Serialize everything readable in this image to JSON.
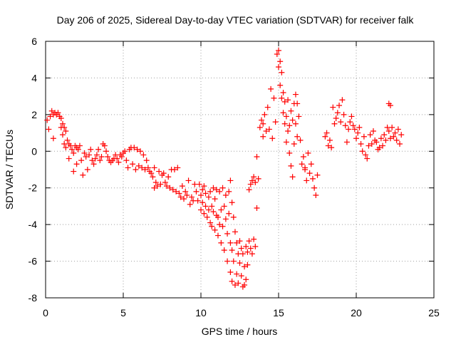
{
  "chart_data": {
    "type": "scatter",
    "title": "Day 206 of 2025, Sidereal Day-to-day VTEC variation (SDTVAR) for receiver falk",
    "xlabel": "GPS time / hours",
    "ylabel": "SDTVAR / TECUs",
    "xlim": [
      0,
      25
    ],
    "ylim": [
      -8,
      6
    ],
    "xticks": [
      0,
      5,
      10,
      15,
      20,
      25
    ],
    "yticks": [
      -8,
      -6,
      -4,
      -2,
      0,
      2,
      4,
      6
    ],
    "grid": true,
    "marker": "+",
    "marker_color": "#ff0000",
    "series": [
      {
        "name": "SDTVAR",
        "points": [
          [
            0.1,
            1.7
          ],
          [
            0.2,
            1.2
          ],
          [
            0.3,
            1.9
          ],
          [
            0.4,
            2.2
          ],
          [
            0.5,
            2.0
          ],
          [
            0.5,
            0.7
          ],
          [
            0.6,
            2.1
          ],
          [
            0.7,
            2.0
          ],
          [
            0.8,
            2.1
          ],
          [
            0.9,
            1.9
          ],
          [
            1.0,
            1.8
          ],
          [
            1.0,
            1.3
          ],
          [
            1.1,
            1.5
          ],
          [
            1.1,
            0.9
          ],
          [
            1.2,
            1.3
          ],
          [
            1.2,
            0.4
          ],
          [
            1.3,
            1.1
          ],
          [
            1.3,
            0.2
          ],
          [
            1.4,
            0.6
          ],
          [
            1.5,
            0.4
          ],
          [
            1.5,
            -0.4
          ],
          [
            1.6,
            0.3
          ],
          [
            1.7,
            0.1
          ],
          [
            1.8,
            -0.1
          ],
          [
            1.8,
            -1.1
          ],
          [
            1.9,
            0.3
          ],
          [
            2.0,
            0.2
          ],
          [
            2.0,
            -0.7
          ],
          [
            2.1,
            0.1
          ],
          [
            2.2,
            0.3
          ],
          [
            2.3,
            -0.5
          ],
          [
            2.4,
            -1.3
          ],
          [
            2.5,
            -0.1
          ],
          [
            2.6,
            -0.3
          ],
          [
            2.7,
            -1.0
          ],
          [
            2.8,
            -0.2
          ],
          [
            2.9,
            0.1
          ],
          [
            3.0,
            -0.5
          ],
          [
            3.1,
            -0.7
          ],
          [
            3.2,
            -0.4
          ],
          [
            3.3,
            -0.2
          ],
          [
            3.4,
            0.1
          ],
          [
            3.5,
            -0.5
          ],
          [
            3.6,
            -0.3
          ],
          [
            3.7,
            0.4
          ],
          [
            3.8,
            0.3
          ],
          [
            3.9,
            0.0
          ],
          [
            4.0,
            -0.3
          ],
          [
            4.1,
            -0.5
          ],
          [
            4.2,
            -0.6
          ],
          [
            4.3,
            -0.5
          ],
          [
            4.4,
            -0.4
          ],
          [
            4.5,
            -0.2
          ],
          [
            4.6,
            -0.4
          ],
          [
            4.7,
            -0.6
          ],
          [
            4.8,
            -0.2
          ],
          [
            4.9,
            -0.3
          ],
          [
            5.0,
            -0.1
          ],
          [
            5.1,
            0.0
          ],
          [
            5.2,
            -0.5
          ],
          [
            5.3,
            -0.9
          ],
          [
            5.4,
            0.1
          ],
          [
            5.5,
            0.2
          ],
          [
            5.6,
            -0.7
          ],
          [
            5.7,
            0.2
          ],
          [
            5.8,
            -1.0
          ],
          [
            5.9,
            0.1
          ],
          [
            6.0,
            -0.8
          ],
          [
            6.1,
            0.0
          ],
          [
            6.2,
            -0.9
          ],
          [
            6.3,
            -0.2
          ],
          [
            6.4,
            -1.0
          ],
          [
            6.5,
            -0.5
          ],
          [
            6.6,
            -0.9
          ],
          [
            6.7,
            -1.1
          ],
          [
            6.8,
            -1.2
          ],
          [
            6.9,
            -1.4
          ],
          [
            7.0,
            -2.0
          ],
          [
            7.0,
            -0.9
          ],
          [
            7.1,
            -1.7
          ],
          [
            7.2,
            -1.9
          ],
          [
            7.3,
            -1.1
          ],
          [
            7.4,
            -1.8
          ],
          [
            7.5,
            -1.3
          ],
          [
            7.6,
            -1.2
          ],
          [
            7.7,
            -1.7
          ],
          [
            7.8,
            -1.9
          ],
          [
            7.9,
            -1.4
          ],
          [
            8.0,
            -2.0
          ],
          [
            8.1,
            -1.0
          ],
          [
            8.2,
            -2.1
          ],
          [
            8.3,
            -1.0
          ],
          [
            8.4,
            -2.2
          ],
          [
            8.5,
            -0.9
          ],
          [
            8.6,
            -2.3
          ],
          [
            8.7,
            -2.5
          ],
          [
            8.8,
            -1.9
          ],
          [
            8.9,
            -2.6
          ],
          [
            9.0,
            -2.2
          ],
          [
            9.1,
            -2.4
          ],
          [
            9.2,
            -1.6
          ],
          [
            9.3,
            -2.9
          ],
          [
            9.4,
            -2.5
          ],
          [
            9.5,
            -2.7
          ],
          [
            9.6,
            -1.8
          ],
          [
            9.7,
            -2.2
          ],
          [
            9.8,
            -2.7
          ],
          [
            9.9,
            -1.8
          ],
          [
            10.0,
            -2.4
          ],
          [
            10.0,
            -3.2
          ],
          [
            10.1,
            -2.1
          ],
          [
            10.1,
            -2.8
          ],
          [
            10.2,
            -1.9
          ],
          [
            10.2,
            -3.4
          ],
          [
            10.3,
            -2.3
          ],
          [
            10.3,
            -3.0
          ],
          [
            10.4,
            -3.6
          ],
          [
            10.5,
            -2.5
          ],
          [
            10.5,
            -3.2
          ],
          [
            10.6,
            -3.9
          ],
          [
            10.6,
            -2.2
          ],
          [
            10.7,
            -3.0
          ],
          [
            10.7,
            -4.1
          ],
          [
            10.8,
            -2.0
          ],
          [
            10.8,
            -3.3
          ],
          [
            10.9,
            -2.6
          ],
          [
            10.9,
            -4.3
          ],
          [
            11.0,
            -2.1
          ],
          [
            11.0,
            -3.5
          ],
          [
            11.1,
            -3.6
          ],
          [
            11.1,
            -4.6
          ],
          [
            11.2,
            -2.2
          ],
          [
            11.2,
            -4.0
          ],
          [
            11.3,
            -3.2
          ],
          [
            11.3,
            -5.0
          ],
          [
            11.4,
            -2.0
          ],
          [
            11.4,
            -4.1
          ],
          [
            11.5,
            -3.0
          ],
          [
            11.5,
            -5.4
          ],
          [
            11.6,
            -2.4
          ],
          [
            11.6,
            -3.7
          ],
          [
            11.7,
            -4.5
          ],
          [
            11.7,
            -6.0
          ],
          [
            11.8,
            -2.2
          ],
          [
            11.8,
            -3.4
          ],
          [
            11.9,
            -5.0
          ],
          [
            11.9,
            -6.6
          ],
          [
            11.9,
            -1.6
          ],
          [
            12.0,
            -2.8
          ],
          [
            12.0,
            -5.4
          ],
          [
            12.0,
            -7.1
          ],
          [
            12.1,
            -3.6
          ],
          [
            12.1,
            -6.0
          ],
          [
            12.2,
            -4.4
          ],
          [
            12.2,
            -7.3
          ],
          [
            12.3,
            -5.0
          ],
          [
            12.3,
            -6.7
          ],
          [
            12.4,
            -5.6
          ],
          [
            12.4,
            -7.2
          ],
          [
            12.5,
            -6.1
          ],
          [
            12.5,
            -4.9
          ],
          [
            12.6,
            -6.8
          ],
          [
            12.6,
            -5.3
          ],
          [
            12.7,
            -7.4
          ],
          [
            12.7,
            -5.6
          ],
          [
            12.8,
            -7.3
          ],
          [
            12.8,
            -6.3
          ],
          [
            12.9,
            -5.2
          ],
          [
            12.9,
            -7.0
          ],
          [
            13.0,
            -5.5
          ],
          [
            13.0,
            -6.2
          ],
          [
            13.1,
            -4.9
          ],
          [
            13.1,
            -2.1
          ],
          [
            13.2,
            -5.3
          ],
          [
            13.2,
            -1.8
          ],
          [
            13.3,
            -1.6
          ],
          [
            13.3,
            -5.6
          ],
          [
            13.4,
            -1.4
          ],
          [
            13.4,
            -4.8
          ],
          [
            13.5,
            -1.7
          ],
          [
            13.5,
            -5.2
          ],
          [
            13.6,
            -0.3
          ],
          [
            13.6,
            -3.1
          ],
          [
            13.7,
            -1.5
          ],
          [
            13.8,
            1.3
          ],
          [
            13.9,
            1.7
          ],
          [
            14.0,
            0.8
          ],
          [
            14.0,
            1.5
          ],
          [
            14.1,
            2.0
          ],
          [
            14.2,
            1.1
          ],
          [
            14.3,
            2.4
          ],
          [
            14.4,
            1.2
          ],
          [
            14.5,
            3.4
          ],
          [
            14.6,
            0.7
          ],
          [
            14.7,
            2.9
          ],
          [
            14.8,
            1.6
          ],
          [
            14.9,
            5.3
          ],
          [
            15.0,
            5.5
          ],
          [
            15.0,
            4.6
          ],
          [
            15.1,
            4.9
          ],
          [
            15.1,
            3.6
          ],
          [
            15.2,
            4.3
          ],
          [
            15.2,
            2.9
          ],
          [
            15.3,
            3.2
          ],
          [
            15.3,
            2.1
          ],
          [
            15.4,
            2.7
          ],
          [
            15.4,
            1.5
          ],
          [
            15.5,
            1.9
          ],
          [
            15.5,
            0.5
          ],
          [
            15.6,
            1.1
          ],
          [
            15.6,
            2.8
          ],
          [
            15.7,
            1.4
          ],
          [
            15.7,
            -0.1
          ],
          [
            15.8,
            2.2
          ],
          [
            15.8,
            -0.8
          ],
          [
            15.9,
            1.7
          ],
          [
            15.9,
            -1.4
          ],
          [
            16.0,
            2.6
          ],
          [
            16.0,
            0.4
          ],
          [
            16.1,
            3.1
          ],
          [
            16.1,
            1.5
          ],
          [
            16.2,
            2.6
          ],
          [
            16.2,
            0.8
          ],
          [
            16.3,
            1.9
          ],
          [
            16.4,
            0.6
          ],
          [
            16.5,
            -0.7
          ],
          [
            16.6,
            -0.3
          ],
          [
            16.7,
            -1.0
          ],
          [
            16.7,
            -0.9
          ],
          [
            16.8,
            -1.6
          ],
          [
            16.9,
            -0.1
          ],
          [
            17.0,
            -1.2
          ],
          [
            17.1,
            -0.7
          ],
          [
            17.2,
            -1.5
          ],
          [
            17.3,
            -2.0
          ],
          [
            17.4,
            -2.4
          ],
          [
            17.5,
            -1.3
          ],
          [
            18.0,
            0.8
          ],
          [
            18.1,
            1.0
          ],
          [
            18.2,
            0.3
          ],
          [
            18.3,
            0.6
          ],
          [
            18.4,
            0.2
          ],
          [
            18.5,
            2.4
          ],
          [
            18.6,
            1.5
          ],
          [
            18.7,
            1.8
          ],
          [
            18.8,
            2.1
          ],
          [
            18.9,
            2.5
          ],
          [
            19.0,
            1.6
          ],
          [
            19.1,
            2.8
          ],
          [
            19.2,
            2.0
          ],
          [
            19.3,
            1.4
          ],
          [
            19.4,
            0.5
          ],
          [
            19.5,
            1.2
          ],
          [
            19.6,
            1.6
          ],
          [
            19.7,
            1.9
          ],
          [
            19.8,
            1.4
          ],
          [
            19.9,
            1.2
          ],
          [
            20.0,
            0.7
          ],
          [
            20.1,
            1.0
          ],
          [
            20.2,
            1.3
          ],
          [
            20.3,
            0.4
          ],
          [
            20.4,
            0.0
          ],
          [
            20.5,
            0.8
          ],
          [
            20.6,
            -0.2
          ],
          [
            20.7,
            -0.4
          ],
          [
            20.8,
            0.3
          ],
          [
            20.9,
            0.9
          ],
          [
            21.0,
            0.4
          ],
          [
            21.1,
            1.1
          ],
          [
            21.2,
            0.6
          ],
          [
            21.3,
            0.5
          ],
          [
            21.4,
            0.1
          ],
          [
            21.5,
            0.2
          ],
          [
            21.6,
            0.7
          ],
          [
            21.7,
            0.3
          ],
          [
            21.8,
            0.9
          ],
          [
            21.9,
            0.6
          ],
          [
            22.0,
            1.3
          ],
          [
            22.1,
            2.6
          ],
          [
            22.1,
            1.1
          ],
          [
            22.2,
            2.5
          ],
          [
            22.2,
            0.7
          ],
          [
            22.3,
            1.3
          ],
          [
            22.4,
            0.8
          ],
          [
            22.5,
            1.0
          ],
          [
            22.6,
            0.6
          ],
          [
            22.7,
            1.2
          ],
          [
            22.8,
            0.4
          ],
          [
            22.9,
            0.9
          ]
        ]
      }
    ]
  }
}
